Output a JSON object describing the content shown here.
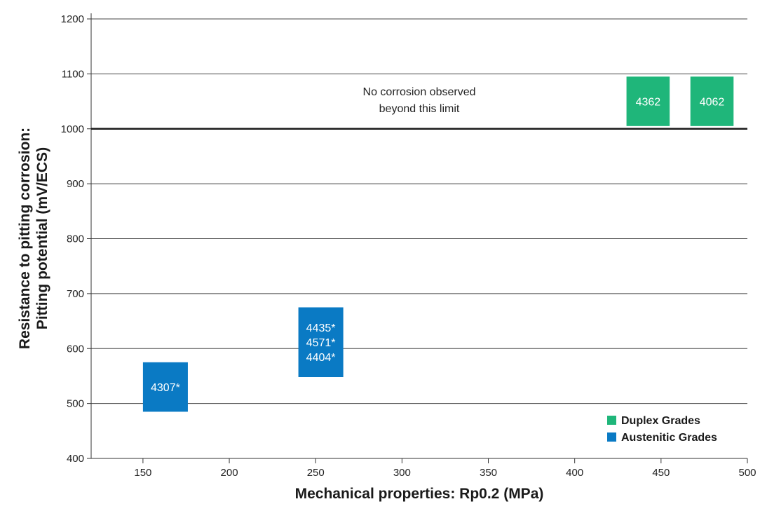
{
  "chart_data": {
    "type": "range-boxes",
    "title": "",
    "xlabel": "Mechanical properties: Rp0.2 (MPa)",
    "ylabel_lines": [
      "Resistance to pitting corrosion:",
      "Pitting potential (mV/ECS)"
    ],
    "xlim": [
      120,
      500
    ],
    "ylim": [
      400,
      1200
    ],
    "x_ticks": [
      150,
      200,
      250,
      300,
      350,
      400,
      450,
      500
    ],
    "y_ticks": [
      400,
      500,
      600,
      700,
      800,
      900,
      1000,
      1100,
      1200
    ],
    "grid": "horizontal",
    "reference_line": {
      "y": 1000,
      "annotation": [
        "No corrosion observed",
        "beyond this limit"
      ]
    },
    "series": [
      {
        "name": "Duplex Grades",
        "color": "#1fb67a",
        "boxes": [
          {
            "labels": [
              "4362"
            ],
            "x_range": [
              430,
              455
            ],
            "y_range": [
              1005,
              1095
            ]
          },
          {
            "labels": [
              "4062"
            ],
            "x_range": [
              467,
              492
            ],
            "y_range": [
              1005,
              1095
            ]
          }
        ]
      },
      {
        "name": "Austenitic Grades",
        "color": "#0a7ac4",
        "boxes": [
          {
            "labels": [
              "4307*"
            ],
            "x_range": [
              150,
              176
            ],
            "y_range": [
              485,
              575
            ]
          },
          {
            "labels": [
              "4435*",
              "4571*",
              "4404*"
            ],
            "x_range": [
              240,
              266
            ],
            "y_range": [
              548,
              675
            ]
          }
        ]
      }
    ],
    "legend": {
      "position": "bottom-right",
      "entries": [
        "Duplex Grades",
        "Austenitic Grades"
      ]
    }
  }
}
